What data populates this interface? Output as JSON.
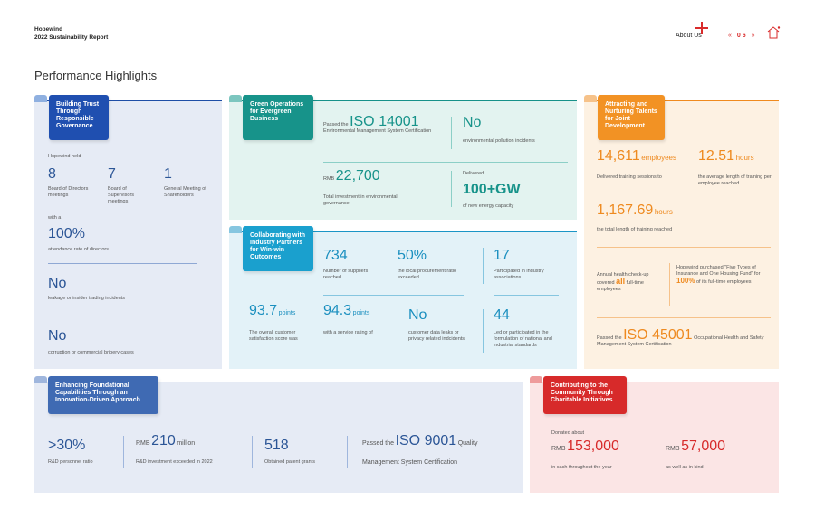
{
  "header": {
    "company": "Hopewind",
    "report": "2022 Sustainability Report",
    "about": "About Us",
    "page_prev": "«",
    "page": "06",
    "page_next": "»"
  },
  "title": "Performance Highlights",
  "governance": {
    "tab": "Building Trust Through Responsible Governance",
    "held": "Hopewind held",
    "m1_value": "8",
    "m1_label": "Board of Directors meetings",
    "m2_value": "7",
    "m2_label": "Board of Supervisors meetings",
    "m3_value": "1",
    "m3_label": "General Meeting of Shareholders",
    "with": "with a",
    "attendance_value": "100%",
    "attendance_label": "attendance rate of directors",
    "leak_value": "No",
    "leak_label": "leakage or insider trading incidents",
    "corrupt_value": "No",
    "corrupt_label": "corruption or commercial bribery cases"
  },
  "green": {
    "tab": "Green Operations for Evergreen Business",
    "iso_prefix": "Passed the",
    "iso_value": "ISO 14001",
    "iso_label": "Environmental Management System Certification",
    "pollution_value": "No",
    "pollution_label": "environmental pollution incidents",
    "invest_prefix": "RMB",
    "invest_value": "22,700",
    "invest_label": "Total investment in environmental governance",
    "delivered": "Delivered",
    "capacity_value": "100+GW",
    "capacity_label": "of new energy capacity"
  },
  "collab": {
    "tab": "Collaborating with Industry Partners for Win-win Outcomes",
    "suppliers_value": "734",
    "suppliers_label": "Number of suppliers reached",
    "local_value": "50%",
    "local_label": "the local procurement ratio exceeded",
    "assoc_value": "17",
    "assoc_label": "Participated in industry associations",
    "satis_value": "93.7",
    "satis_unit": "points",
    "satis_label": "The overall customer satisfaction score was",
    "service_value": "94.3",
    "service_unit": "points",
    "service_label": "with a service rating of",
    "leaks_value": "No",
    "leaks_label": "customer data leaks or privacy related indcidents",
    "standards_value": "44",
    "standards_label": "Led or participated in the formulation of national and industrial standards"
  },
  "talent": {
    "tab": "Attracting and Nurturing Talents for Joint Development",
    "employees_value": "14,611",
    "employees_unit": "employees",
    "employees_label": "Delivered training sessions to",
    "hours_value": "12.51",
    "hours_unit": "hours",
    "hours_label": "the average length of training per employee reached",
    "total_value": "1,167.69",
    "total_unit": "hours",
    "total_label": "the total length of training reached",
    "checkup_pre": "Annual health check-up covered",
    "checkup_all": "all",
    "checkup_post": "full-time employees",
    "insurance_pre": "Hopewind purchased \"Five Types of Insurance and One Housing Fund\" for",
    "insurance_pct": "100%",
    "insurance_post": "of its full-time employees",
    "iso_prefix": "Passed the",
    "iso_value": "ISO 45001",
    "iso_label": "Occupational Health and Safety Management System Certification"
  },
  "innovation": {
    "tab": "Enhancing Foundational Capabilities Through an Innovation-Driven Approach",
    "rd_value": ">30%",
    "rd_label": "R&D personnel ratio",
    "invest_prefix": "RMB",
    "invest_value": "210",
    "invest_unit": "million",
    "invest_label": "R&D investment exceeded in 2022",
    "patent_value": "518",
    "patent_label": "Obtained patent grants",
    "iso_prefix": "Passed the",
    "iso_value": "ISO 9001",
    "iso_unit": "Quality",
    "iso_label": "Management System Certification"
  },
  "charity": {
    "tab": "Contributing to the Community Through Charitable Initiatives",
    "donated": "Donated about",
    "cash_prefix": "RMB",
    "cash_value": "153,000",
    "cash_label": "in cash throughout the year",
    "kind_prefix": "RMB",
    "kind_value": "57,000",
    "kind_label": "as well as in kind"
  }
}
